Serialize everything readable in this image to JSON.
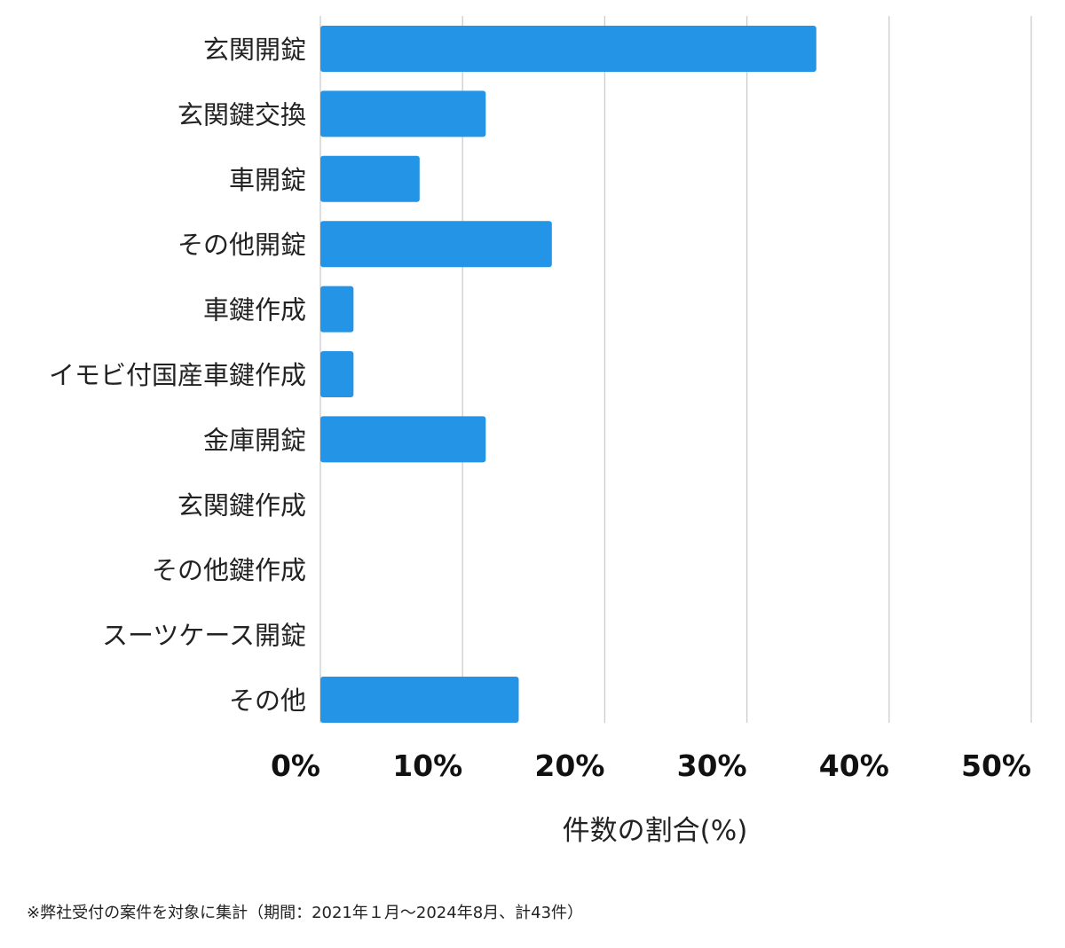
{
  "chart_data": {
    "type": "bar",
    "orientation": "horizontal",
    "categories": [
      "玄関開錠",
      "玄関鍵交換",
      "車開錠",
      "その他開錠",
      "車鍵作成",
      "イモビ付国産車鍵作成",
      "金庫開錠",
      "玄関鍵作成",
      "その他鍵作成",
      "スーツケース開錠",
      "その他"
    ],
    "values": [
      34.88,
      11.63,
      6.98,
      16.28,
      2.33,
      2.33,
      11.63,
      0,
      0,
      0,
      13.95
    ],
    "xlabel": "件数の割合(%)",
    "ylabel": "",
    "xlim": [
      0,
      50
    ],
    "xticks": [
      0,
      10,
      20,
      30,
      40,
      50
    ],
    "xtick_labels": [
      "0%",
      "10%",
      "20%",
      "30%",
      "40%",
      "50%"
    ],
    "grid": "vertical",
    "bar_color": "#2494e6",
    "grid_color": "#cccccc"
  },
  "footnote": "※弊社受付の案件を対象に集計（期間：2021年１月〜2024年8月、計43件）"
}
